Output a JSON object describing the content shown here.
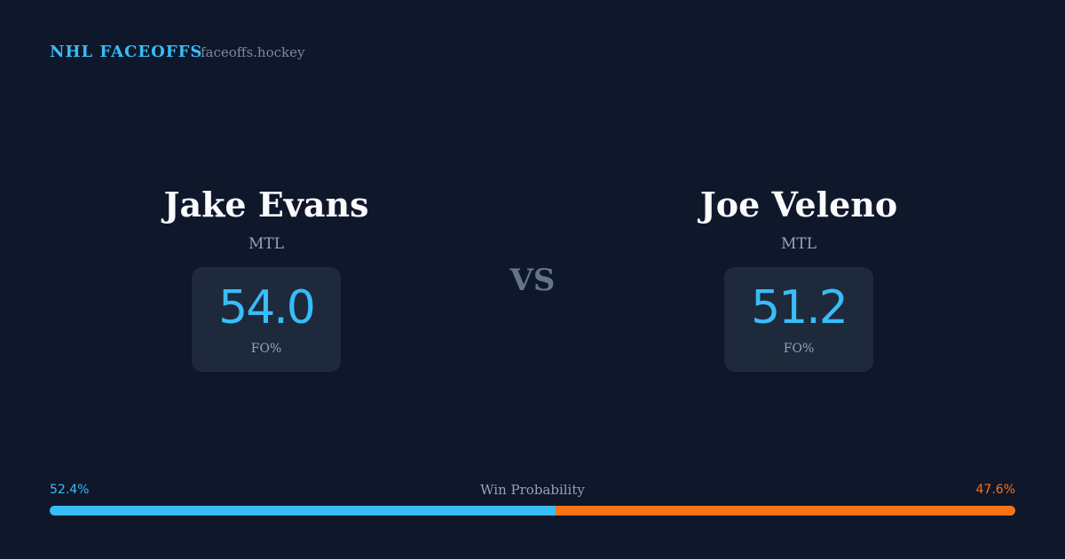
{
  "header": {
    "title": "NHL FACEOFFS",
    "site": "faceoffs.hockey"
  },
  "players": [
    {
      "name": "Jake Evans",
      "team": "MTL",
      "fo": "54.0",
      "fo_label": "FO%"
    },
    {
      "name": "Joe Veleno",
      "team": "MTL",
      "fo": "51.2",
      "fo_label": "FO%"
    }
  ],
  "vs": "VS",
  "win_probability": {
    "label": "Win Probability",
    "left": {
      "value": 52.4,
      "label": "52.4%",
      "color": "#38bdf8"
    },
    "right": {
      "value": 47.6,
      "label": "47.6%",
      "color": "#f97316"
    }
  }
}
